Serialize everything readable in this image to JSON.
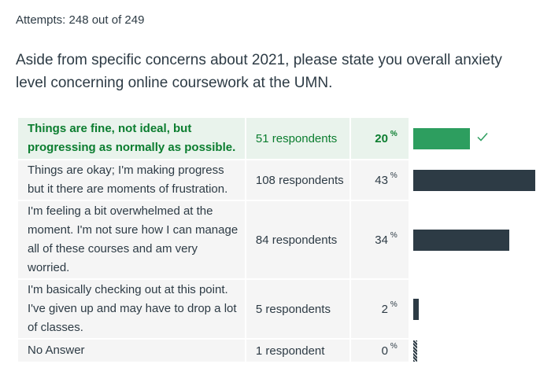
{
  "attempts": "Attempts: 248 out of 249",
  "question": "Aside from specific concerns about 2021, please state you overall anxiety level concerning online coursework at the UMN.",
  "percent_sign": "%",
  "colors": {
    "correct_text": "#0b7d2f",
    "correct_bg": "#e9f3ec",
    "correct_bar": "#2d9e5f",
    "bar": "#2d3b45"
  },
  "answers": [
    {
      "text": "Things are fine, not ideal, but progressing as normally as possible.",
      "respondents": "51 respondents",
      "percent": "20",
      "fraction": 0.2,
      "correct": true
    },
    {
      "text": "Things are okay; I'm making progress but it there are moments of frustration.",
      "respondents": "108 respondents",
      "percent": "43",
      "fraction": 0.43,
      "correct": false
    },
    {
      "text": "I'm feeling a bit overwhelmed at the moment. I'm not sure how I can manage all of these courses and am very worried.",
      "respondents": "84 respondents",
      "percent": "34",
      "fraction": 0.34,
      "correct": false
    },
    {
      "text": "I'm basically checking out at this point. I've given up and may have to drop a lot of classes.",
      "respondents": "5 respondents",
      "percent": "2",
      "fraction": 0.02,
      "correct": false
    },
    {
      "text": "No Answer",
      "respondents": "1 respondent",
      "percent": "0",
      "fraction": 0.0,
      "correct": false
    }
  ]
}
